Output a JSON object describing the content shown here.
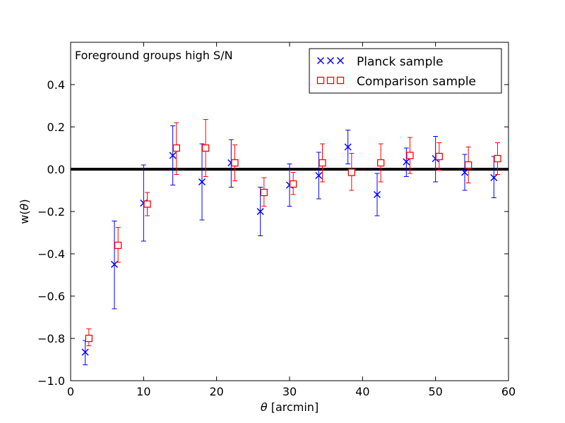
{
  "chart_data": {
    "type": "scatter",
    "title": "",
    "annotation": "Foreground groups high S/N",
    "xlabel_symbol": "θ",
    "xlabel_rest": " [arcmin]",
    "ylabel_prefix": "w(",
    "ylabel_symbol": "θ",
    "ylabel_suffix": ")",
    "xlim": [
      0,
      60
    ],
    "ylim": [
      -1.0,
      0.6
    ],
    "xticks": [
      0,
      10,
      20,
      30,
      40,
      50,
      60
    ],
    "xtick_labels": [
      "0",
      "10",
      "20",
      "30",
      "40",
      "50",
      "60"
    ],
    "yticks": [
      -1.0,
      -0.8,
      -0.6,
      -0.4,
      -0.2,
      0.0,
      0.2,
      0.4
    ],
    "ytick_labels": [
      "−1.0",
      "−0.8",
      "−0.6",
      "−0.4",
      "−0.2",
      "0.0",
      "0.2",
      "0.4"
    ],
    "reference_line_y": 0.0,
    "legend_position": "top-right",
    "series": [
      {
        "name": "Planck sample",
        "marker": "x",
        "color": "#0000ff",
        "x": [
          2,
          6,
          10,
          14,
          18,
          22,
          26,
          30,
          34,
          38,
          42,
          46,
          50,
          54,
          58
        ],
        "y": [
          -0.865,
          -0.45,
          -0.16,
          0.065,
          -0.06,
          0.03,
          -0.2,
          -0.075,
          -0.03,
          0.105,
          -0.12,
          0.035,
          0.05,
          -0.015,
          -0.04
        ],
        "err_low": [
          -0.925,
          -0.66,
          -0.34,
          -0.075,
          -0.24,
          -0.085,
          -0.315,
          -0.175,
          -0.14,
          0.025,
          -0.22,
          -0.035,
          -0.06,
          -0.1,
          -0.135
        ],
        "err_high": [
          -0.81,
          -0.245,
          0.02,
          0.205,
          0.12,
          0.14,
          -0.085,
          0.025,
          0.08,
          0.185,
          -0.02,
          0.1,
          0.155,
          0.07,
          0.06
        ]
      },
      {
        "name": "Comparison sample",
        "marker": "square",
        "color": "#ff0000",
        "x": [
          2.5,
          6.5,
          10.5,
          14.5,
          18.5,
          22.5,
          26.5,
          30.5,
          34.5,
          38.5,
          42.5,
          46.5,
          50.5,
          54.5,
          58.5
        ],
        "y": [
          -0.8,
          -0.36,
          -0.165,
          0.1,
          0.1,
          0.03,
          -0.11,
          -0.07,
          0.03,
          -0.015,
          0.03,
          0.065,
          0.06,
          0.02,
          0.05
        ],
        "err_low": [
          -0.835,
          -0.44,
          -0.22,
          -0.025,
          -0.035,
          -0.055,
          -0.175,
          -0.12,
          -0.06,
          -0.1,
          -0.06,
          -0.02,
          -0.005,
          -0.065,
          -0.025
        ],
        "err_high": [
          -0.755,
          -0.275,
          -0.11,
          0.22,
          0.235,
          0.115,
          -0.04,
          -0.015,
          0.12,
          0.075,
          0.12,
          0.15,
          0.125,
          0.105,
          0.125
        ]
      }
    ]
  }
}
